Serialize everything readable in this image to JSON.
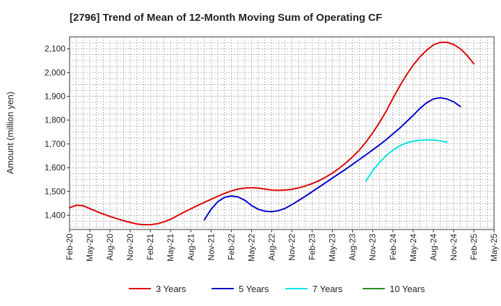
{
  "chart_data": {
    "type": "line",
    "title": "[2796]  Trend of Mean of 12-Month Moving Sum of Operating CF",
    "xlabel": "",
    "ylabel": "Amount (million yen)",
    "ylim": [
      1340,
      2150
    ],
    "yticks": [
      1400,
      1500,
      1600,
      1700,
      1800,
      1900,
      2000,
      2100
    ],
    "ytick_labels": [
      "1,400",
      "1,500",
      "1,600",
      "1,700",
      "1,800",
      "1,900",
      "2,000",
      "2,100"
    ],
    "x_start": "Feb-20",
    "x_end": "May-25",
    "xtick_labels": [
      "Feb-20",
      "May-20",
      "Aug-20",
      "Nov-20",
      "Feb-21",
      "May-21",
      "Aug-21",
      "Nov-21",
      "Feb-22",
      "May-22",
      "Aug-22",
      "Nov-22",
      "Feb-23",
      "May-23",
      "Aug-23",
      "Nov-23",
      "Feb-24",
      "May-24",
      "Aug-24",
      "Nov-24",
      "Feb-25",
      "May-25"
    ],
    "grid": true,
    "legend_position": "bottom",
    "series": [
      {
        "name": "3 Years",
        "color": "#dd0000",
        "start": "Feb-20",
        "values": [
          1432,
          1442,
          1440,
          1428,
          1416,
          1405,
          1395,
          1386,
          1377,
          1370,
          1363,
          1360,
          1360,
          1364,
          1372,
          1383,
          1398,
          1413,
          1427,
          1441,
          1454,
          1467,
          1480,
          1492,
          1502,
          1510,
          1514,
          1516,
          1514,
          1510,
          1506,
          1505,
          1506,
          1509,
          1515,
          1523,
          1533,
          1545,
          1560,
          1577,
          1597,
          1620,
          1645,
          1674,
          1708,
          1747,
          1790,
          1838,
          1892,
          1943,
          1990,
          2031,
          2066,
          2094,
          2116,
          2127,
          2127,
          2118,
          2100,
          2072,
          2037
        ]
      },
      {
        "name": "5 Years",
        "color": "#0000cc",
        "start": "Oct-21",
        "values": [
          1381,
          1425,
          1457,
          1475,
          1481,
          1477,
          1463,
          1441,
          1425,
          1417,
          1415,
          1419,
          1429,
          1445,
          1462,
          1480,
          1499,
          1518,
          1537,
          1556,
          1575,
          1594,
          1614,
          1634,
          1654,
          1675,
          1696,
          1718,
          1742,
          1766,
          1793,
          1820,
          1849,
          1873,
          1889,
          1894,
          1889,
          1877,
          1857
        ]
      },
      {
        "name": "7 Years",
        "color": "#00e5e5",
        "start": "Oct-23",
        "values": [
          1545,
          1588,
          1622,
          1651,
          1674,
          1692,
          1704,
          1711,
          1715,
          1717,
          1716,
          1713,
          1707
        ]
      },
      {
        "name": "10 Years",
        "color": "#228b22",
        "start": "Oct-23",
        "values": []
      }
    ]
  }
}
